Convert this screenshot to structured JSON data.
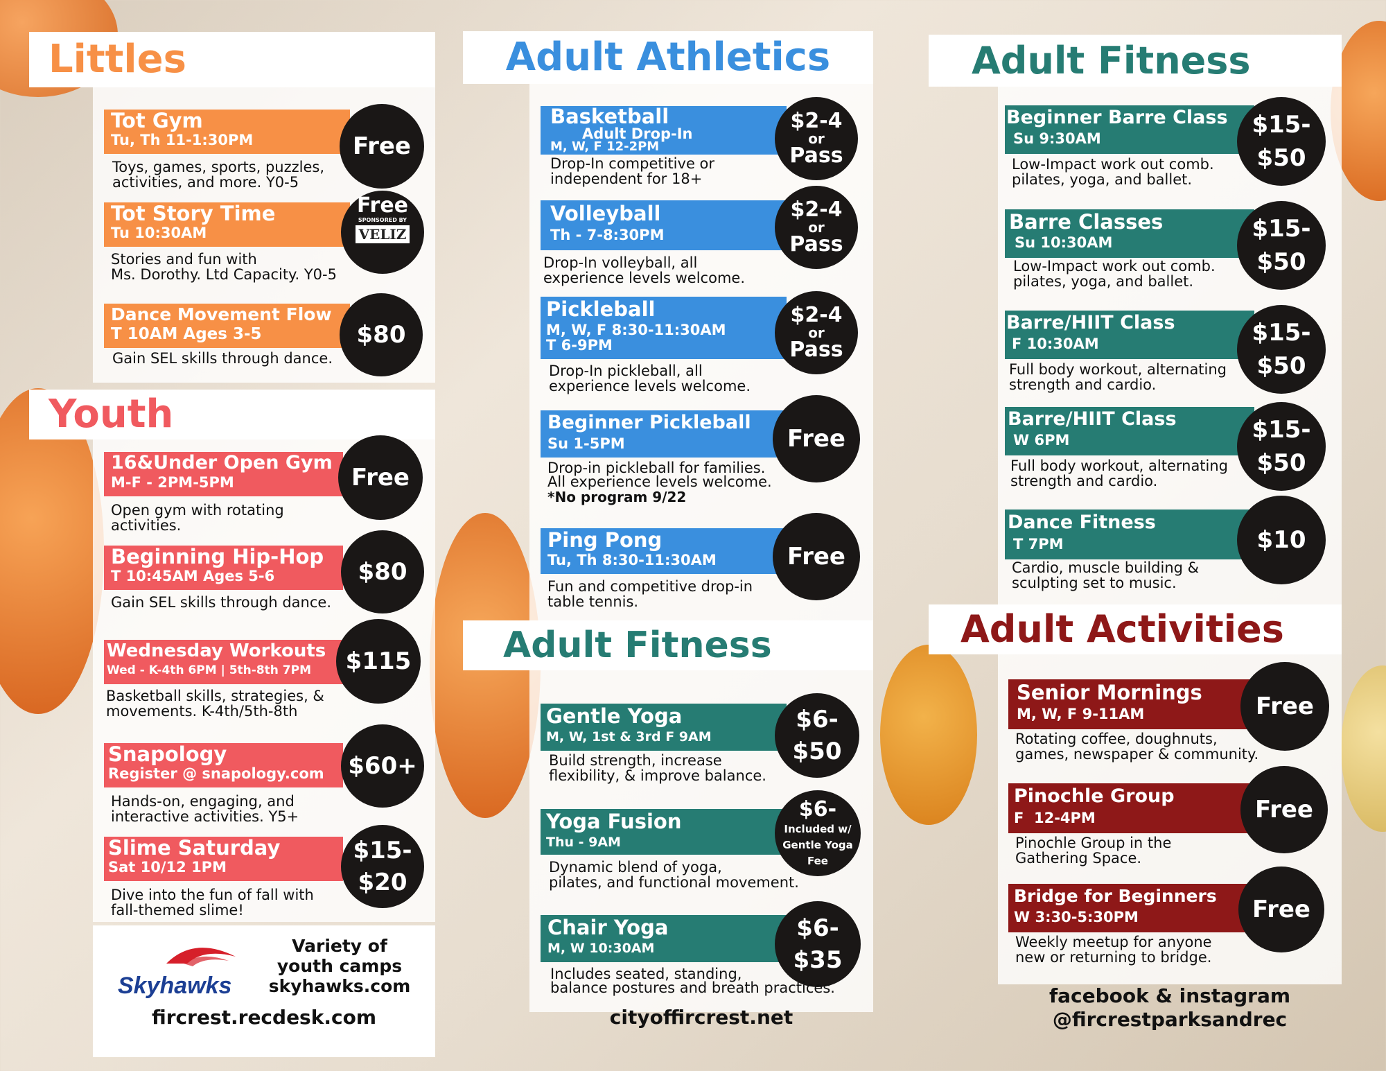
{
  "colors": {
    "littles": "#f79046",
    "youth": "#f05a5f",
    "athletics": "#3a8fde",
    "fitness": "#267c73",
    "activities": "#8e1818"
  },
  "littles": {
    "title": "Littles",
    "items": [
      {
        "name": "Tot Gym",
        "time": "Tu, Th 11-1:30PM",
        "price": "Free",
        "desc": "Toys, games, sports, puzzles,\nactivities, and more. Y0-5"
      },
      {
        "name": "Tot Story Time",
        "time": "Tu 10:30AM",
        "price": "Free",
        "sponsor": "SPONSORED BY",
        "sponsor_logo": "VELIZ",
        "desc": "Stories and fun with\nMs. Dorothy. Ltd Capacity. Y0-5"
      },
      {
        "name": "Dance Movement Flow",
        "time": "T 10AM Ages 3-5",
        "price": "$80",
        "desc": "Gain SEL skills through dance."
      }
    ]
  },
  "youth": {
    "title": "Youth",
    "items": [
      {
        "name": "16&Under Open Gym",
        "time": "M-F - 2PM-5PM",
        "price": "Free",
        "desc": "Open gym with rotating\nactivities."
      },
      {
        "name": "Beginning Hip-Hop",
        "time": "T 10:45AM Ages 5-6",
        "price": "$80",
        "desc": "Gain SEL skills through dance."
      },
      {
        "name": "Wednesday Workouts",
        "time": "Wed - K-4th 6PM | 5th-8th 7PM",
        "price": "$115",
        "desc": "Basketball skills, strategies, &\nmovements. K-4th/5th-8th"
      },
      {
        "name": "Snapology",
        "time": "Register @ snapology.com",
        "price": "$60+",
        "desc": "Hands-on, engaging, and\ninteractive activities. Y5+"
      },
      {
        "name": "Slime Saturday",
        "time": "Sat 10/12 1PM",
        "price_top": "$15-",
        "price_bottom": "$20",
        "desc": "Dive into the fun of fall with\nfall-themed slime!"
      }
    ]
  },
  "skyhawks": {
    "logo": "Skyhawks",
    "camps": "Variety of\nyouth camps\nskyhawks.com"
  },
  "athletics": {
    "title": "Adult Athletics",
    "items": [
      {
        "name": "Basketball",
        "sub": "Adult Drop-In",
        "time": "M, W, F 12-2PM",
        "price_top": "$2-4",
        "price_mid": "or",
        "price_bottom": "Pass",
        "desc": "Drop-In competitive or\nindependent for 18+"
      },
      {
        "name": "Volleyball",
        "time": "Th - 7-8:30PM",
        "price_top": "$2-4",
        "price_mid": "or",
        "price_bottom": "Pass",
        "desc": "Drop-In volleyball, all\nexperience levels welcome."
      },
      {
        "name": "Pickleball",
        "time": "M, W, F 8:30-11:30AM",
        "time2": "T 6-9PM",
        "price_top": "$2-4",
        "price_mid": "or",
        "price_bottom": "Pass",
        "desc": "Drop-In pickleball, all\nexperience levels welcome."
      },
      {
        "name": "Beginner Pickleball",
        "time": "Su 1-5PM",
        "price": "Free",
        "desc": "Drop-in pickleball for families.\nAll experience levels welcome.",
        "note": "*No program 9/22"
      },
      {
        "name": "Ping Pong",
        "time": "Tu, Th 8:30-11:30AM",
        "price": "Free",
        "desc": "Fun and competitive drop-in\ntable tennis."
      }
    ]
  },
  "fitness_mid": {
    "title": "Adult Fitness",
    "items": [
      {
        "name": "Gentle Yoga",
        "time": "M, W, 1st & 3rd F 9AM",
        "price_top": "$6-",
        "price_bottom": "$50",
        "desc": "Build strength, increase\nflexibility, & improve balance."
      },
      {
        "name": "Yoga Fusion",
        "time": "Thu - 9AM",
        "price_top": "$6-",
        "price_bottom": "Included w/\nGentle Yoga\nFee",
        "desc": "Dynamic blend of yoga,\npilates, and functional movement."
      },
      {
        "name": "Chair Yoga",
        "time": "M, W 10:30AM",
        "price_top": "$6-",
        "price_bottom": "$35",
        "desc": "Includes seated, standing,\nbalance postures and breath practices."
      }
    ]
  },
  "fitness_right": {
    "title": "Adult Fitness",
    "items": [
      {
        "name": "Beginner Barre Class",
        "time": "Su 9:30AM",
        "price_top": "$15-",
        "price_bottom": "$50",
        "desc": "Low-Impact work out comb.\npilates, yoga, and ballet."
      },
      {
        "name": "Barre Classes",
        "time": "Su 10:30AM",
        "price_top": "$15-",
        "price_bottom": "$50",
        "desc": "Low-Impact work out comb.\npilates, yoga, and ballet."
      },
      {
        "name": "Barre/HIIT Class",
        "time": "F 10:30AM",
        "price_top": "$15-",
        "price_bottom": "$50",
        "desc": "Full body workout, alternating\nstrength and cardio."
      },
      {
        "name": "Barre/HIIT Class",
        "time": "W 6PM",
        "price_top": "$15-",
        "price_bottom": "$50",
        "desc": "Full body workout, alternating\nstrength and cardio."
      },
      {
        "name": "Dance Fitness",
        "time": "T 7PM",
        "price": "$10",
        "desc": "Cardio, muscle building &\nsculpting set to music."
      }
    ]
  },
  "activities": {
    "title": "Adult Activities",
    "items": [
      {
        "name": "Senior Mornings",
        "time": "M, W, F 9-11AM",
        "price": "Free",
        "desc": "Rotating coffee, doughnuts,\ngames, newspaper & community."
      },
      {
        "name": "Pinochle Group",
        "time": "F  12-4PM",
        "price": "Free",
        "desc": "Pinochle Group in the\nGathering Space."
      },
      {
        "name": "Bridge for Beginners",
        "time": "W 3:30-5:30PM",
        "price": "Free",
        "desc": "Weekly meetup for anyone\nnew or returning to bridge."
      }
    ]
  },
  "footer": {
    "left": "fircrest.recdesk.com",
    "middle": "cityoffircrest.net",
    "right_line1": "facebook & instagram",
    "right_line2": "@fircrestparksandrec"
  }
}
